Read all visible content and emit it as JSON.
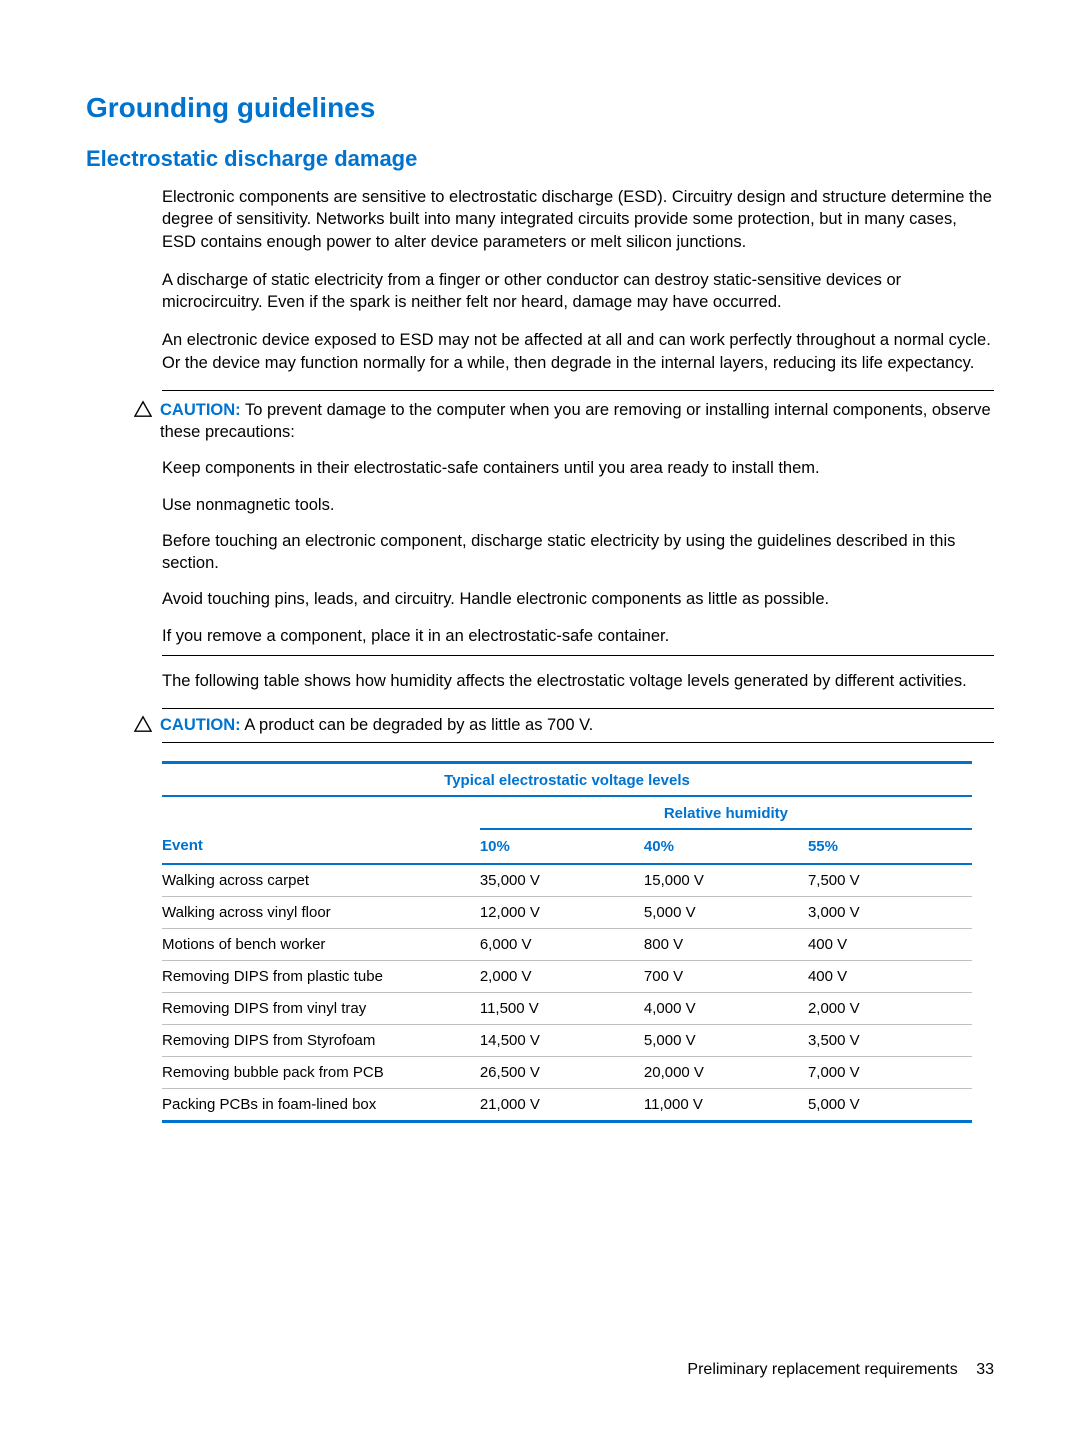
{
  "colors": {
    "heading": "#0073cf",
    "table_border": "#0073cf",
    "row_border": "#bfbfbf",
    "text": "#000000",
    "background": "#ffffff"
  },
  "headings": {
    "h1": "Grounding guidelines",
    "h2": "Electrostatic discharge damage"
  },
  "paragraphs": {
    "p1": "Electronic components are sensitive to electrostatic discharge (ESD). Circuitry design and structure determine the degree of sensitivity. Networks built into many integrated circuits provide some protection, but in many cases, ESD contains enough power to alter device parameters or melt silicon junctions.",
    "p2": "A discharge of static electricity from a finger or other conductor can destroy static-sensitive devices or microcircuitry. Even if the spark is neither felt nor heard, damage may have occurred.",
    "p3": "An electronic device exposed to ESD may not be affected at all and can work perfectly throughout a normal cycle. Or the device may function normally for a while, then degrade in the internal layers, reducing its life expectancy.",
    "p4": "The following table shows how humidity affects the electrostatic voltage levels generated by different activities."
  },
  "caution1": {
    "label": "CAUTION:",
    "lead": "To prevent damage to the computer when you are removing or installing internal components, observe these precautions:",
    "items": [
      "Keep components in their electrostatic-safe containers until you area ready to install them.",
      "Use nonmagnetic tools.",
      "Before touching an electronic component, discharge static electricity by using the guidelines described in this section.",
      "Avoid touching pins, leads, and circuitry. Handle electronic components as little as possible.",
      "If you remove a component, place it in an electrostatic-safe container."
    ]
  },
  "caution2": {
    "label": "CAUTION:",
    "text": "A product can be degraded by as little as 700 V."
  },
  "table": {
    "title": "Typical electrostatic voltage levels",
    "rh_label": "Relative humidity",
    "columns": [
      "Event",
      "10%",
      "40%",
      "55%"
    ],
    "rows": [
      [
        "Walking across carpet",
        "35,000 V",
        "15,000 V",
        "7,500 V"
      ],
      [
        "Walking across vinyl floor",
        "12,000 V",
        "5,000 V",
        "3,000 V"
      ],
      [
        "Motions of bench worker",
        "6,000 V",
        "800 V",
        "400 V"
      ],
      [
        "Removing DIPS from plastic tube",
        "2,000 V",
        "700 V",
        "400 V"
      ],
      [
        "Removing DIPS from vinyl tray",
        "11,500 V",
        "4,000 V",
        "2,000 V"
      ],
      [
        "Removing DIPS from Styrofoam",
        "14,500 V",
        "5,000 V",
        "3,500 V"
      ],
      [
        "Removing bubble pack from PCB",
        "26,500 V",
        "20,000 V",
        "7,000 V"
      ],
      [
        "Packing PCBs in foam-lined box",
        "21,000 V",
        "11,000 V",
        "5,000 V"
      ]
    ]
  },
  "footer": {
    "text": "Preliminary replacement requirements",
    "page": "33"
  }
}
